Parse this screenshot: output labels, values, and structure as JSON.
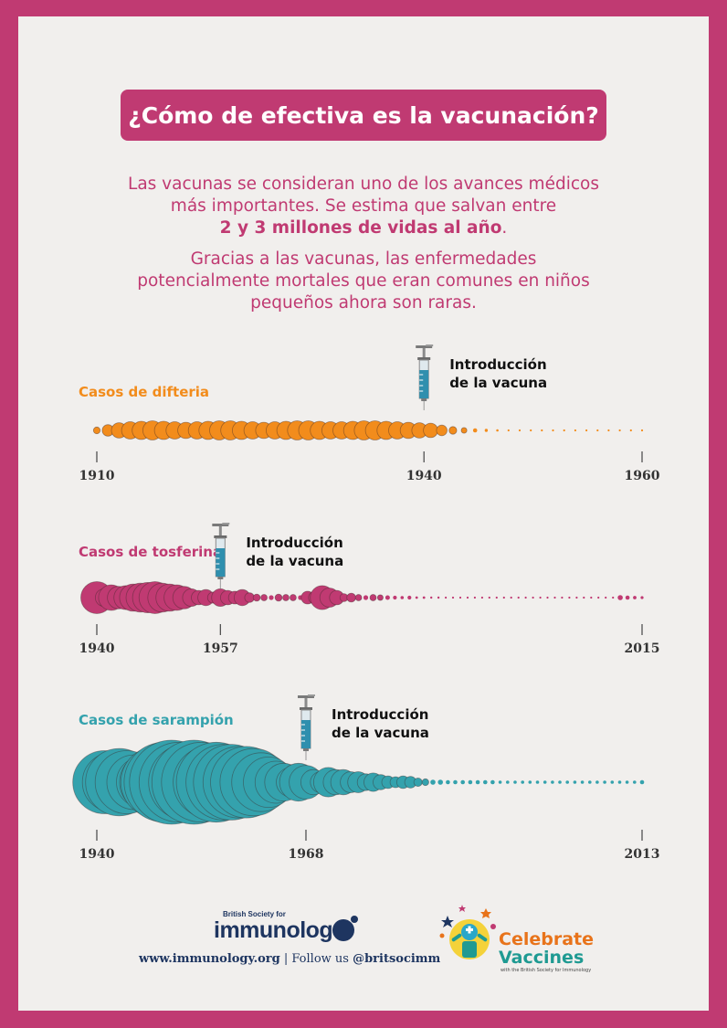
{
  "title": "¿Cómo de efectiva es la vacunación?",
  "intro": {
    "line1": "Las vacunas se consideran uno de los avances médicos",
    "line2": "más importantes. Se estima que salvan entre",
    "line3_bold": "2 y 3 millones de vidas al año",
    "line3_end": ".",
    "line4": "Gracias a las vacunas, las enfermedades",
    "line5": "potencialmente mortales que eran comunes en niños",
    "line6": "pequeños ahora son raras."
  },
  "colors": {
    "frame": "#c03a72",
    "page": "#f1efed",
    "difteria": "#f28c1c",
    "tosferina": "#c03a72",
    "sarampion": "#34a2ad",
    "syringe_liquid": "#2f8fae"
  },
  "vaccine_label": [
    "Introducción",
    "de la vacuna"
  ],
  "icons": [
    "syringe-icon",
    "bsi-logo-icon",
    "celebrate-vaccines-logo-icon"
  ],
  "footer": {
    "bsi_small": "British Society for",
    "bsi_name": "immunolog",
    "web": "www.immunology.org",
    "sep": " | Follow us ",
    "handle": "@britsocimm",
    "cv_line1": "Celebrate",
    "cv_line2": "Vaccines",
    "cv_small": "with the British Society for Immunology"
  },
  "chart_data": [
    {
      "type": "bubble-timeline",
      "title": "Casos de difteria",
      "x_start": 1910,
      "x_end": 1960,
      "vaccine_year": 1940,
      "tick_labels": [
        "1910",
        "1940",
        "1960"
      ],
      "relative_cases": [
        0.35,
        0.6,
        0.8,
        0.9,
        0.95,
        1.0,
        0.95,
        0.9,
        0.85,
        0.9,
        0.95,
        1.0,
        1.0,
        0.95,
        0.9,
        0.85,
        0.9,
        0.95,
        1.0,
        1.0,
        0.95,
        0.9,
        0.9,
        0.95,
        1.0,
        1.0,
        0.95,
        0.9,
        0.85,
        0.8,
        0.75,
        0.55,
        0.4,
        0.3,
        0.22,
        0.16,
        0.12,
        0.09,
        0.07,
        0.06,
        0.05,
        0.04,
        0.04,
        0.04,
        0.04,
        0.04,
        0.04,
        0.04,
        0.04,
        0.04
      ]
    },
    {
      "type": "bubble-timeline",
      "title": "Casos de tosferina",
      "x_start": 1940,
      "x_end": 2015,
      "vaccine_year": 1957,
      "tick_labels": [
        "1940",
        "1957",
        "2015"
      ],
      "relative_cases": [
        1.0,
        0.55,
        0.8,
        0.7,
        0.75,
        0.85,
        0.9,
        0.95,
        1.0,
        0.9,
        0.85,
        0.8,
        0.7,
        0.55,
        0.45,
        0.5,
        0.35,
        0.55,
        0.45,
        0.4,
        0.5,
        0.3,
        0.22,
        0.2,
        0.15,
        0.22,
        0.2,
        0.2,
        0.15,
        0.4,
        0.4,
        0.75,
        0.6,
        0.45,
        0.25,
        0.28,
        0.2,
        0.15,
        0.2,
        0.18,
        0.14,
        0.12,
        0.1,
        0.12,
        0.08,
        0.08,
        0.07,
        0.07,
        0.06,
        0.06,
        0.05,
        0.05,
        0.05,
        0.05,
        0.05,
        0.05,
        0.05,
        0.05,
        0.05,
        0.05,
        0.05,
        0.05,
        0.05,
        0.05,
        0.05,
        0.05,
        0.05,
        0.05,
        0.05,
        0.05,
        0.05,
        0.05,
        0.16,
        0.13,
        0.11,
        0.09
      ]
    },
    {
      "type": "bubble-timeline",
      "title": "Casos de sarampión",
      "x_start": 1940,
      "x_end": 2013,
      "vaccine_year": 1968,
      "tick_labels": [
        "1940",
        "1968",
        "2013"
      ],
      "relative_cases": [
        0.55,
        0.75,
        0.7,
        0.8,
        0.75,
        0.65,
        0.6,
        0.7,
        0.85,
        0.95,
        1.0,
        0.95,
        0.9,
        1.0,
        0.95,
        0.85,
        0.95,
        0.9,
        0.9,
        0.85,
        0.85,
        0.8,
        0.7,
        0.6,
        0.5,
        0.45,
        0.35,
        0.45,
        0.4,
        0.3,
        0.25,
        0.35,
        0.3,
        0.3,
        0.25,
        0.25,
        0.2,
        0.22,
        0.18,
        0.15,
        0.13,
        0.15,
        0.14,
        0.1,
        0.08,
        0.06,
        0.06,
        0.05,
        0.05,
        0.05,
        0.05,
        0.05,
        0.05,
        0.05,
        0.04,
        0.04,
        0.04,
        0.04,
        0.04,
        0.04,
        0.04,
        0.04,
        0.04,
        0.04,
        0.04,
        0.04,
        0.04,
        0.04,
        0.04,
        0.04,
        0.04,
        0.04,
        0.04,
        0.05
      ]
    }
  ]
}
